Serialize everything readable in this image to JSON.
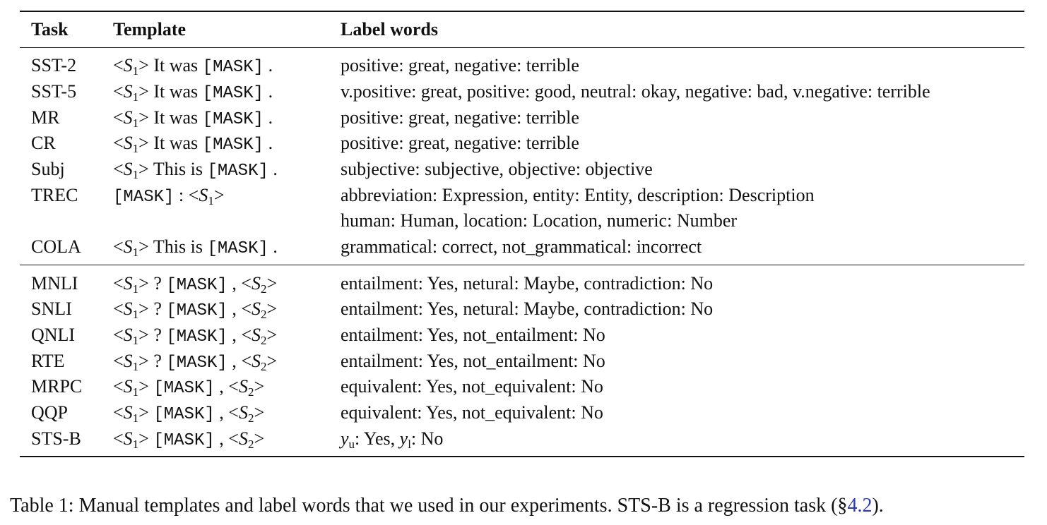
{
  "headers": {
    "task": "Task",
    "template": "Template",
    "labels": "Label words"
  },
  "tokens": {
    "lt": "<",
    "gt": ">",
    "s": "S",
    "one": "1",
    "two": "2",
    "mask": "[MASK]",
    "dot": ".",
    "comma": ",",
    "colon": ":",
    "qmark": "?",
    "it_was": "It was",
    "this_is": "This is",
    "y": "y",
    "u": "u",
    "l": "l"
  },
  "rows": [
    {
      "task": "SST-2",
      "labels": "positive: great, negative: terrible"
    },
    {
      "task": "SST-5",
      "labels": "v.positive: great, positive: good, neutral: okay, negative: bad, v.negative: terrible"
    },
    {
      "task": "MR",
      "labels": "positive: great, negative: terrible"
    },
    {
      "task": "CR",
      "labels": "positive: great, negative: terrible"
    },
    {
      "task": "Subj",
      "labels": "subjective: subjective, objective: objective"
    },
    {
      "task": "TREC",
      "labels": "abbreviation: Expression, entity: Entity, description: Description",
      "labels2": "human: Human, location: Location, numeric: Number"
    },
    {
      "task": "COLA",
      "labels": "grammatical: correct, not_grammatical: incorrect"
    },
    {
      "task": "MNLI",
      "labels": "entailment: Yes, netural: Maybe, contradiction: No"
    },
    {
      "task": "SNLI",
      "labels": "entailment: Yes, netural: Maybe, contradiction: No"
    },
    {
      "task": "QNLI",
      "labels": "entailment: Yes, not_entailment: No"
    },
    {
      "task": "RTE",
      "labels": "entailment: Yes, not_entailment: No"
    },
    {
      "task": "MRPC",
      "labels": "equivalent: Yes, not_equivalent: No"
    },
    {
      "task": "QQP",
      "labels": "equivalent: Yes, not_equivalent: No"
    },
    {
      "task": "STS-B",
      "labels_tail_u": ": Yes, ",
      "labels_tail_l": ": No"
    }
  ],
  "caption": {
    "text": "Table 1: Manual templates and label words that we used in our experiments. STS-B is a regression task (§",
    "ref": "4.2",
    "end": ")."
  }
}
